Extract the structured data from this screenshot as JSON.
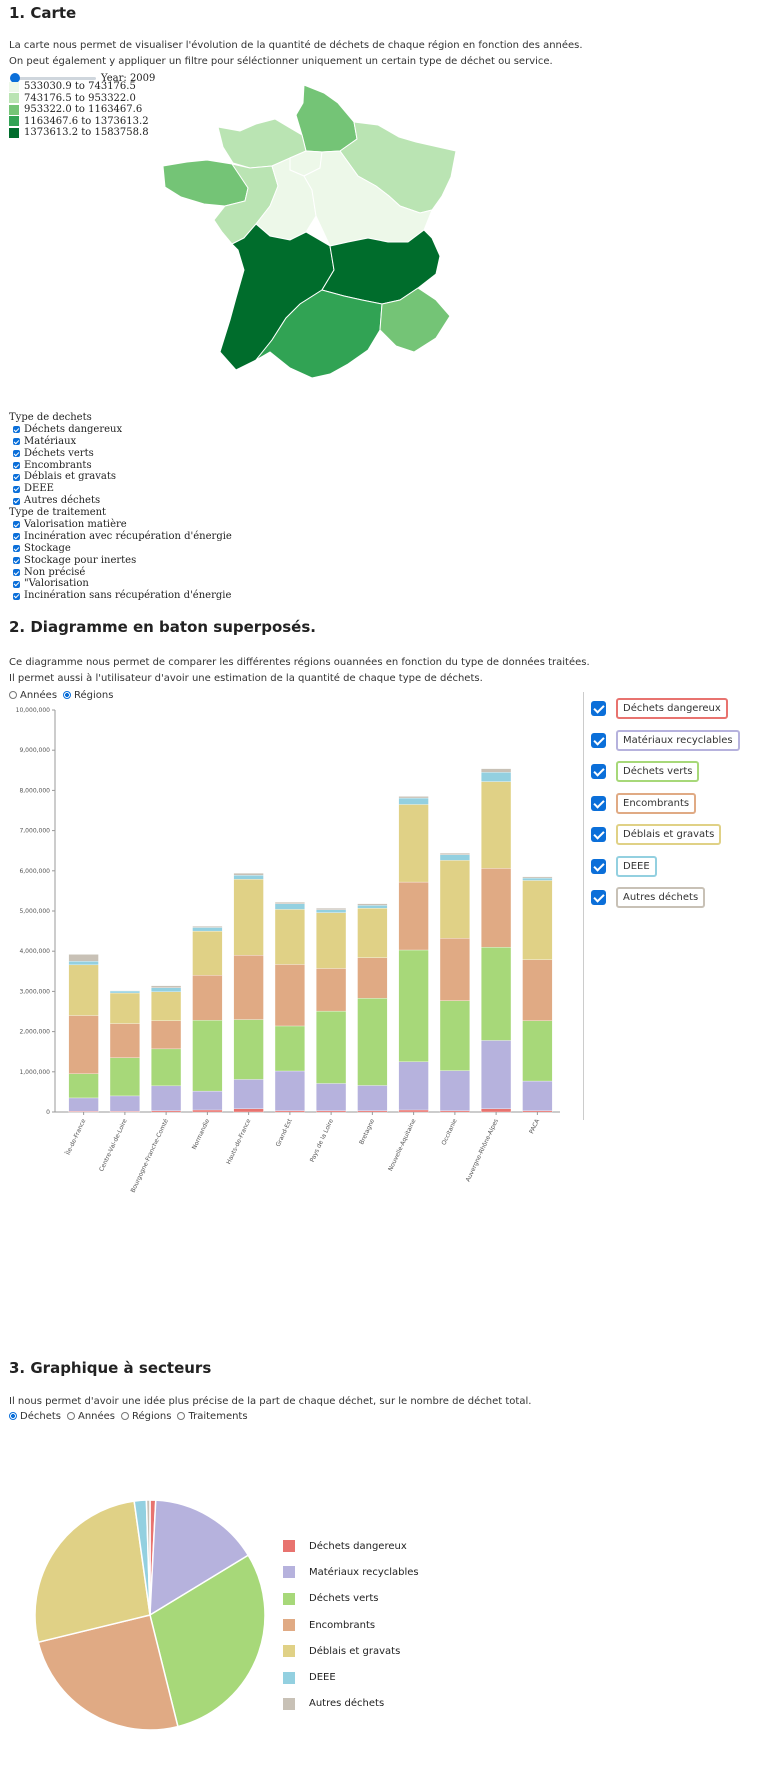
{
  "section1": {
    "title": "1. Carte",
    "desc1": "La carte nous permet de visualiser l'évolution de la quantité de déchets de chaque région en fonction des années.",
    "desc2": "On peut également y appliquer un filtre pour séléctionner uniquement un certain type de déchet ou service.",
    "year_label": "Year: 2009",
    "slider_value": 0,
    "legend": [
      {
        "label": "533030.9 to 743176.5",
        "color": "#edf8e9"
      },
      {
        "label": "743176.5 to 953322.0",
        "color": "#bae4b3"
      },
      {
        "label": "953322.0 to 1163467.6",
        "color": "#74c476"
      },
      {
        "label": "1163467.6 to 1373613.2",
        "color": "#31a354"
      },
      {
        "label": "1373613.2 to 1583758.8",
        "color": "#006d2c"
      }
    ],
    "filters": {
      "type_dechets_title": "Type de dechets",
      "type_dechets": [
        "Déchets dangereux",
        "Matériaux",
        "Déchets verts",
        "Encombrants",
        "Déblais et gravats",
        "DEEE",
        "Autres déchets"
      ],
      "type_traitement_title": "Type de traitement",
      "type_traitement": [
        "Valorisation matière",
        "Incinération avec récupération d'énergie",
        "Stockage",
        "Stockage pour inertes",
        "Non précisé",
        "\"Valorisation",
        "Incinération sans récupération d'énergie"
      ]
    }
  },
  "section2": {
    "title": "2. Diagramme en baton superposés.",
    "desc1": "Ce diagramme nous permet de comparer les différentes régions ouannées en fonction du type de données traitées.",
    "desc2": "Il permet aussi à l'utilisateur d'avoir une estimation de la quantité de chaque type de déchets.",
    "radio_annees": "Années",
    "radio_regions": "Régions",
    "legend": [
      {
        "label": "Déchets dangereux",
        "color": "#e8736f"
      },
      {
        "label": "Matériaux recyclables",
        "color": "#b6b2dd"
      },
      {
        "label": "Déchets verts",
        "color": "#a7d879"
      },
      {
        "label": "Encombrants",
        "color": "#e0aa84"
      },
      {
        "label": "Déblais et gravats",
        "color": "#e0d186"
      },
      {
        "label": "DEEE",
        "color": "#93d0e0"
      },
      {
        "label": "Autres déchets",
        "color": "#c8c1b6"
      }
    ]
  },
  "chart_data": [
    {
      "type": "bar",
      "stacked": true,
      "categories": [
        "Île-de-France",
        "Centre-Val-de-Loire",
        "Bourgogne-Franche-Comté",
        "Normandie",
        "Hauts-de-France",
        "Grand-Est",
        "Pays de la Loire",
        "Bretagne",
        "Nouvelle-Aquitaine",
        "Occitanie",
        "Auvergne-Rhône-Alpes",
        "PACA"
      ],
      "ylim": [
        0,
        10000000
      ],
      "yticks": [
        "10,000,000",
        "9,000,000",
        "8,000,000",
        "7,000,000",
        "6,000,000",
        "5,000,000",
        "4,000,000",
        "3,000,000",
        "2,000,000",
        "1,000,000",
        "0"
      ],
      "series": [
        {
          "name": "Déchets dangereux",
          "values": [
            20000,
            20000,
            30000,
            50000,
            80000,
            30000,
            30000,
            30000,
            50000,
            30000,
            80000,
            30000
          ]
        },
        {
          "name": "Matériaux recyclables",
          "values": [
            330000,
            380000,
            620000,
            470000,
            730000,
            990000,
            680000,
            630000,
            1200000,
            1000000,
            1700000,
            740000
          ]
        },
        {
          "name": "Déchets verts",
          "values": [
            600000,
            950000,
            920000,
            1760000,
            1490000,
            1120000,
            1800000,
            2170000,
            2780000,
            1740000,
            2320000,
            1500000
          ]
        },
        {
          "name": "Encombrants",
          "values": [
            1450000,
            850000,
            700000,
            1120000,
            1600000,
            1530000,
            1060000,
            1010000,
            1690000,
            1550000,
            1960000,
            1520000
          ]
        },
        {
          "name": "Déblais et gravats",
          "values": [
            1260000,
            760000,
            720000,
            1100000,
            1890000,
            1370000,
            1390000,
            1230000,
            1930000,
            1940000,
            2160000,
            1970000
          ]
        },
        {
          "name": "DEEE",
          "values": [
            90000,
            50000,
            100000,
            90000,
            100000,
            140000,
            70000,
            70000,
            160000,
            140000,
            230000,
            60000
          ]
        },
        {
          "name": "Autres déchets",
          "values": [
            170000,
            10000,
            50000,
            30000,
            50000,
            40000,
            40000,
            40000,
            40000,
            40000,
            90000,
            30000
          ]
        }
      ]
    },
    {
      "type": "pie",
      "labels": [
        "Déchets dangereux",
        "Matériaux recyclables",
        "Déchets verts",
        "Encombrants",
        "Déblais et gravats",
        "DEEE",
        "Autres déchets"
      ],
      "values": [
        0.8,
        15.5,
        29.8,
        25.1,
        26.6,
        1.7,
        0.5
      ]
    }
  ],
  "section3": {
    "title": "3. Graphique à secteurs",
    "desc": "Il nous permet d'avoir une idée plus précise de la part de chaque déchet, sur le nombre de déchet total.",
    "radios": [
      {
        "label": "Déchets",
        "checked": true
      },
      {
        "label": "Années",
        "checked": false
      },
      {
        "label": "Régions",
        "checked": false
      },
      {
        "label": "Traitements",
        "checked": false
      }
    ]
  }
}
